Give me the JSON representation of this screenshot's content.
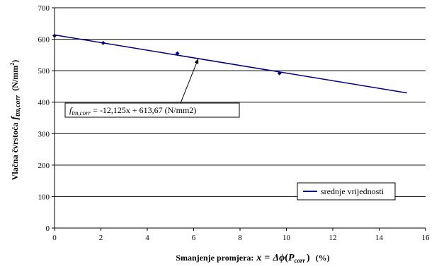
{
  "chart_data": {
    "type": "line",
    "xlabel_prefix": "Smanjenje promjera:",
    "xlabel_formula": {
      "x": "x",
      "eq": "=",
      "delta_phi": "Δϕ",
      "open": "(",
      "P": "P",
      "sub": "corr",
      "close": ")"
    },
    "xlabel_unit": "(%)",
    "ylabel_prefix": "Vlačna čvrstoća",
    "ylabel_symbol": "f",
    "ylabel_sub": "tm,corr",
    "ylabel_unit": "(N/mm",
    "ylabel_unit_sup": "2",
    "ylabel_unit_end": ")",
    "xlim": [
      0,
      16
    ],
    "ylim": [
      0,
      700
    ],
    "xticks": [
      "0",
      "2",
      "4",
      "6",
      "8",
      "10",
      "12",
      "14",
      "16"
    ],
    "yticks": [
      "0",
      "100",
      "200",
      "300",
      "400",
      "500",
      "600",
      "700"
    ],
    "series": [
      {
        "name": "srednje vrijednosti",
        "color": "#000080",
        "points": [
          {
            "x": 0,
            "y": 611
          },
          {
            "x": 2.1,
            "y": 588
          },
          {
            "x": 5.3,
            "y": 555
          },
          {
            "x": 9.7,
            "y": 492
          }
        ]
      }
    ],
    "trendline": {
      "slope": -12.125,
      "intercept": 613.67,
      "x_range": [
        0,
        15.2
      ],
      "color": "#000080"
    },
    "annotation": {
      "symbol": "f",
      "sub": "tm,corr",
      "text": " = -12,125x + 613,67 (N/mm2)",
      "arrow_target_x": 6.2
    },
    "legend": {
      "position": "bottom-right",
      "label": "srednje vrijednosti"
    }
  }
}
